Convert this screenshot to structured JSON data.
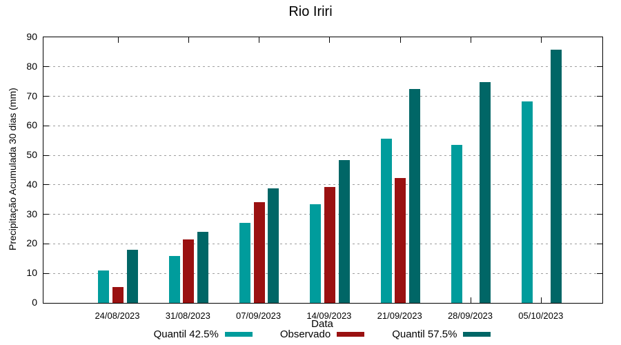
{
  "chart_data": {
    "type": "bar",
    "title": "Rio Iriri",
    "xlabel": "Data",
    "ylabel": "Precipitação Acumulada 30 dias (mm)",
    "ylim": [
      0,
      90
    ],
    "ytick_step": 10,
    "grid": true,
    "legend_position": "below",
    "categories": [
      "24/08/2023",
      "31/08/2023",
      "07/09/2023",
      "14/09/2023",
      "21/09/2023",
      "28/09/2023",
      "05/10/2023"
    ],
    "series": [
      {
        "name": "Quantil 42.5%",
        "color": "#009c9c",
        "values": [
          11.0,
          16.0,
          27.2,
          33.4,
          55.6,
          53.6,
          68.2
        ]
      },
      {
        "name": "Observado",
        "color": "#9a1111",
        "values": [
          5.3,
          21.4,
          34.1,
          39.2,
          42.4,
          null,
          null
        ]
      },
      {
        "name": "Quantil 57.5%",
        "color": "#006666",
        "values": [
          17.9,
          24.1,
          38.7,
          48.4,
          72.4,
          74.8,
          85.8
        ]
      }
    ]
  },
  "colors": {
    "axis": "#000000",
    "grid": "#9e9e9e",
    "background": "#ffffff",
    "text": "#000000"
  }
}
